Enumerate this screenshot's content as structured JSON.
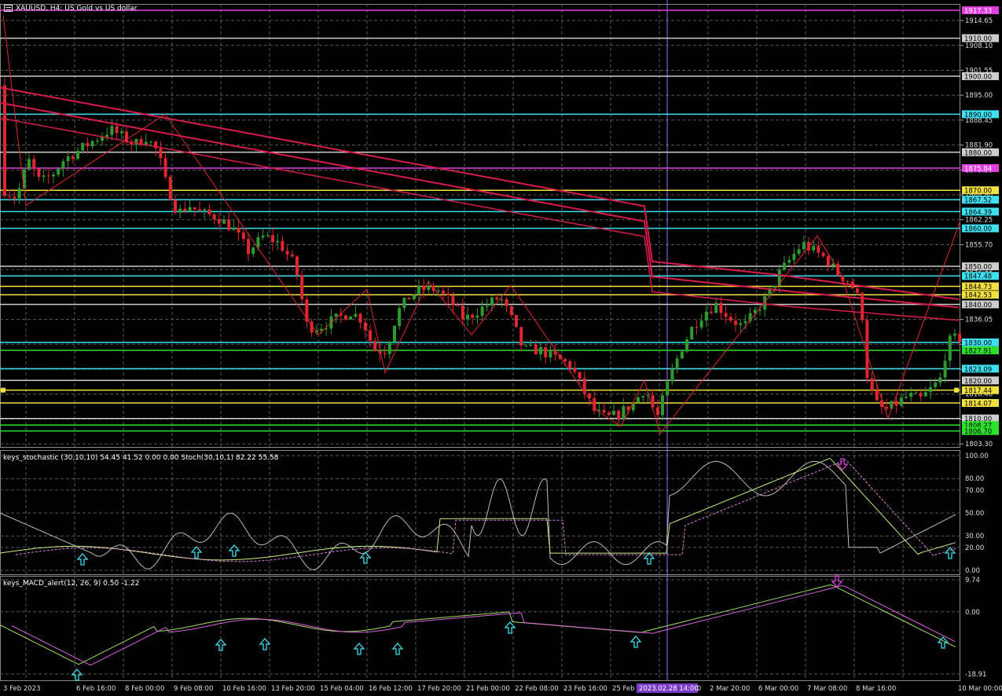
{
  "window": {
    "title": "XAUUSD, H4: US Gold vs US dollar"
  },
  "colors": {
    "bg": "#000000",
    "grid": "#5a5a5a",
    "bull": "#2e9a2e",
    "bear": "#e0262f",
    "ma": "#d81b4a",
    "text": "#ffffff"
  },
  "price_axis": {
    "ticks": [
      "1914.65",
      "1908.10",
      "1901.55",
      "1895.00",
      "1888.45",
      "1881.90",
      "1875.35",
      "1868.80",
      "1862.25",
      "1855.70",
      "1849.15",
      "1842.60",
      "1836.05",
      "1829.50",
      "1822.95",
      "1816.40",
      "1809.85",
      "1803.30"
    ]
  },
  "price_lines": [
    {
      "price": 1917.33,
      "label": "1917.33",
      "color": "#e040e0"
    },
    {
      "price": 1910.0,
      "label": "1910.00",
      "color": "#cccccc"
    },
    {
      "price": 1900.0,
      "label": "1900.00",
      "color": "#cccccc"
    },
    {
      "price": 1890.0,
      "label": "1890.00",
      "color": "#3ee0f0"
    },
    {
      "price": 1880.0,
      "label": "1880.00",
      "color": "#cccccc"
    },
    {
      "price": 1875.84,
      "label": "1875.84",
      "color": "#e040e0"
    },
    {
      "price": 1870.0,
      "label": "1870.00",
      "color": "#f0e040"
    },
    {
      "price": 1867.52,
      "label": "1867.52",
      "color": "#3ee0f0"
    },
    {
      "price": 1864.39,
      "label": "1864.39",
      "color": "#3ee0f0"
    },
    {
      "price": 1860.0,
      "label": "1860.00",
      "color": "#3ee0f0"
    },
    {
      "price": 1850.0,
      "label": "1850.00",
      "color": "#cccccc"
    },
    {
      "price": 1847.48,
      "label": "1847.48",
      "color": "#3ee0f0"
    },
    {
      "price": 1844.73,
      "label": "1844.73",
      "color": "#f0e040"
    },
    {
      "price": 1842.53,
      "label": "1842.53",
      "color": "#f0e040"
    },
    {
      "price": 1840.0,
      "label": "1840.00",
      "color": "#cccccc"
    },
    {
      "price": 1830.0,
      "label": "1830.00",
      "color": "#3ee0f0"
    },
    {
      "price": 1827.91,
      "label": "1827.91",
      "color": "#2ee02e"
    },
    {
      "price": 1823.09,
      "label": "1823.09",
      "color": "#3ee0f0"
    },
    {
      "price": 1820.0,
      "label": "1820.00",
      "color": "#cccccc"
    },
    {
      "price": 1817.44,
      "label": "1817.44",
      "color": "#f0e040"
    },
    {
      "price": 1814.07,
      "label": "1814.07",
      "color": "#f0e040"
    },
    {
      "price": 1810.0,
      "label": "1810.00",
      "color": "#cccccc"
    },
    {
      "price": 1808.27,
      "label": "1808.27",
      "color": "#2ee02e"
    },
    {
      "price": 1806.7,
      "label": "1806.70",
      "color": "#2ee02e"
    }
  ],
  "stoch": {
    "title": "keys_stochastic (30,10,10) 54.45 41.52 0.00 0.00 Stoch(30,10,1) 82.22 55.58",
    "ticks": [
      "100.00",
      "80.00",
      "70.00",
      "50.00",
      "30.00",
      "20.00",
      "0.00"
    ]
  },
  "macd": {
    "title": "keys_MACD_alert(12, 26, 9) 0.50 -1.22",
    "ticks": [
      "9.74",
      "0.00",
      "-18.91"
    ]
  },
  "time_axis": {
    "labels": [
      "3 Feb 2023",
      "6 Feb 16:00",
      "8 Feb 00:00",
      "9 Feb 08:00",
      "10 Feb 16:00",
      "13 Feb 20:00",
      "15 Feb 04:00",
      "16 Feb 12:00",
      "17 Feb 20:00",
      "21 Feb 00:00",
      "22 Feb 08:00",
      "23 Feb 16:00",
      "25 Feb 00:00",
      "1 Mar 12:00",
      "2 Mar 20:00",
      "6 Mar 00:00",
      "7 Mar 08:00",
      "8 Mar 16:00",
      "10 Mar 00:00"
    ],
    "highlight": "2023.02.28 14:00"
  }
}
